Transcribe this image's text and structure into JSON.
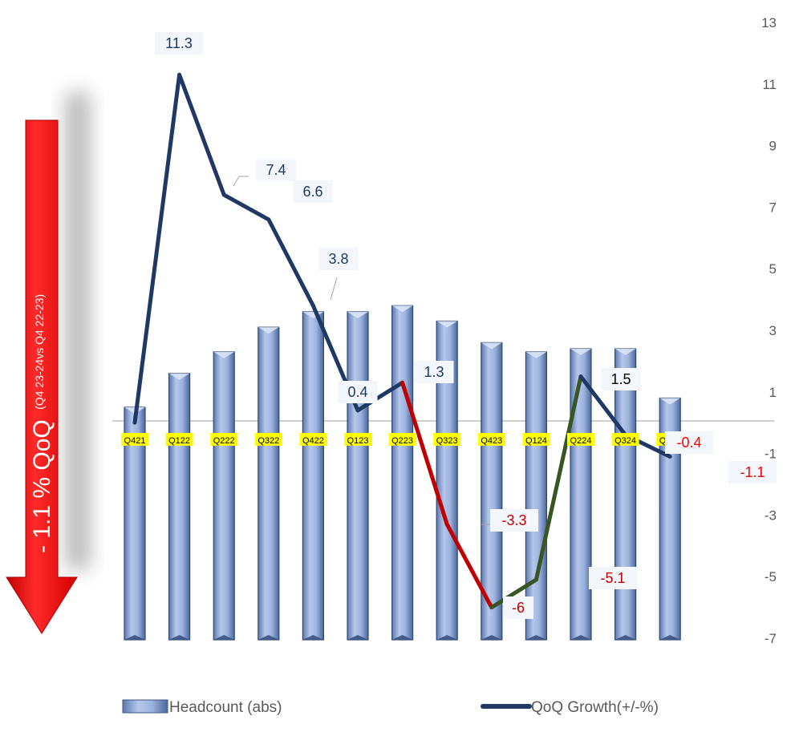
{
  "chart_data": {
    "type": "bar",
    "categories": [
      "Q421",
      "Q122",
      "Q222",
      "Q322",
      "Q422",
      "Q123",
      "Q223",
      "Q323",
      "Q423",
      "Q124",
      "Q224",
      "Q324",
      "Q424"
    ],
    "series": [
      {
        "name": "Headcount (abs)",
        "kind": "bar",
        "color": "#8FA8D6",
        "values": [
          0.5,
          1.6,
          2.3,
          3.1,
          3.6,
          3.6,
          3.8,
          3.3,
          2.6,
          2.3,
          2.4,
          2.4,
          0.8
        ]
      },
      {
        "name": "QoQ Growth(+/-%)",
        "kind": "line",
        "color": "#1F3864",
        "values": [
          0,
          11.3,
          7.4,
          6.6,
          3.8,
          0.4,
          1.3,
          -3.3,
          -6,
          -5.1,
          1.5,
          -0.4,
          -1.1
        ],
        "data_labels": [
          "",
          "11.3",
          "7.4",
          "6.6",
          "3.8",
          "0.4",
          "1.3",
          "-3.3",
          "-6",
          "-5.1",
          "1.5",
          "-0.4",
          "-1.1"
        ]
      }
    ],
    "segment_colors": {
      "up": "#1F3864",
      "down": "#C00000",
      "recover": "#375623"
    },
    "y_right": {
      "ticks": [
        13,
        11,
        9,
        7,
        5,
        3,
        1,
        -1,
        -3,
        -5,
        -7
      ],
      "lim": [
        -7,
        13
      ]
    },
    "legend_position": "bottom",
    "annotation": {
      "main": "- 1.1 % QoQ",
      "sub": "(Q4 23-24vs Q4 22-23)",
      "arrow_color": "#FF0000"
    }
  }
}
